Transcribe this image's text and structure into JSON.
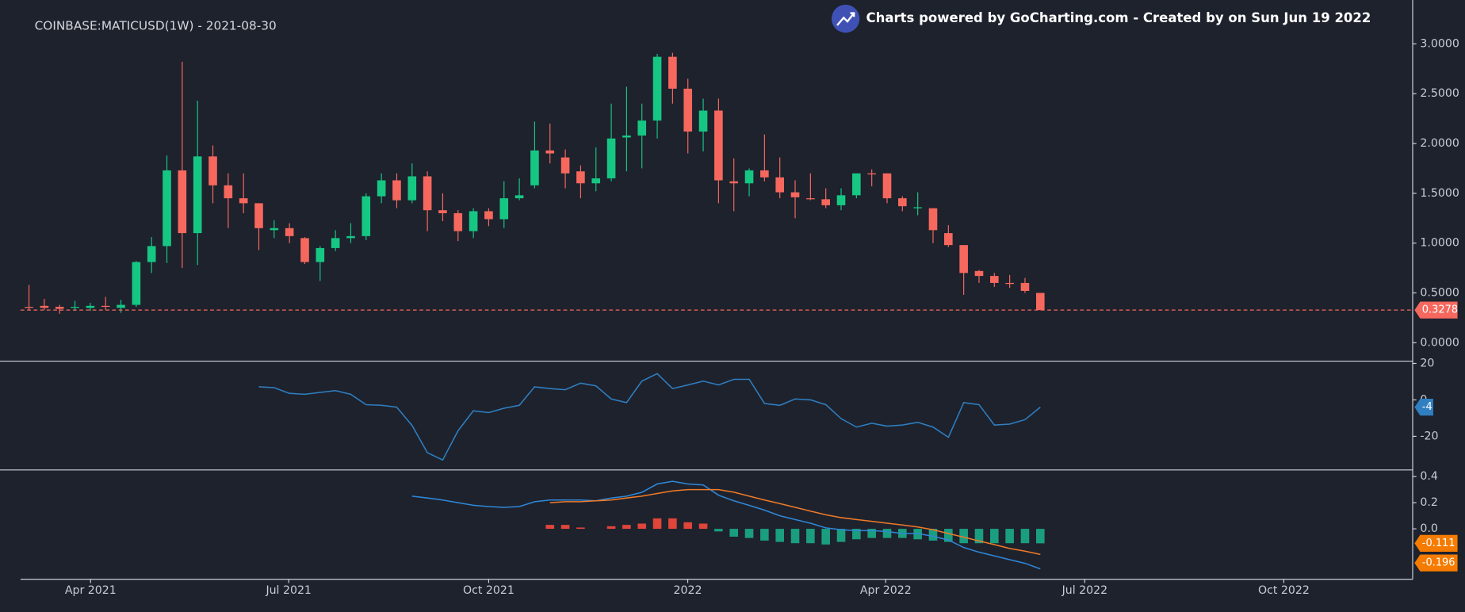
{
  "header": {
    "credit": "Charts powered by GoCharting.com - Created by  on Sun Jun 19 2022"
  },
  "chart_data": [
    {
      "type": "candlestick",
      "title": "COINBASE:MATICUSD(1W) - 2021-08-30",
      "up_color": "#16c784",
      "down_color": "#f6685e",
      "open": [
        0.36,
        0.37,
        0.36,
        0.35,
        0.35,
        0.37,
        0.35,
        0.38,
        0.81,
        0.97,
        1.73,
        1.1,
        1.87,
        1.58,
        1.45,
        1.4,
        1.13,
        1.15,
        1.05,
        0.81,
        0.95,
        1.05,
        1.07,
        1.47,
        1.63,
        1.43,
        1.67,
        1.33,
        1.3,
        1.12,
        1.32,
        1.24,
        1.45,
        1.58,
        1.93,
        1.86,
        1.72,
        1.6,
        1.65,
        2.06,
        2.08,
        2.23,
        2.87,
        2.55,
        2.12,
        2.33,
        1.62,
        1.6,
        1.73,
        1.66,
        1.51,
        1.45,
        1.44,
        1.38,
        1.48,
        1.7,
        1.7,
        1.45,
        1.35,
        1.35,
        1.1,
        0.98,
        0.72,
        0.67,
        0.6,
        0.6,
        0.5
      ],
      "high": [
        0.58,
        0.44,
        0.38,
        0.42,
        0.4,
        0.46,
        0.43,
        0.82,
        1.06,
        1.88,
        2.82,
        2.43,
        1.98,
        1.7,
        1.7,
        1.4,
        1.23,
        1.2,
        1.06,
        0.97,
        1.13,
        1.2,
        1.5,
        1.7,
        1.7,
        1.8,
        1.72,
        1.5,
        1.33,
        1.35,
        1.35,
        1.62,
        1.65,
        2.22,
        2.2,
        1.94,
        1.78,
        1.96,
        2.4,
        2.57,
        2.4,
        2.9,
        2.91,
        2.65,
        2.45,
        2.45,
        1.85,
        1.75,
        2.09,
        1.86,
        1.63,
        1.7,
        1.55,
        1.55,
        1.7,
        1.74,
        1.7,
        1.47,
        1.51,
        1.35,
        1.18,
        0.98,
        0.73,
        0.7,
        0.68,
        0.65,
        0.5
      ],
      "low": [
        0.33,
        0.33,
        0.29,
        0.32,
        0.32,
        0.33,
        0.3,
        0.36,
        0.7,
        0.8,
        0.75,
        0.78,
        1.4,
        1.15,
        1.3,
        0.93,
        1.05,
        1.0,
        0.79,
        0.62,
        0.92,
        1.0,
        1.03,
        1.4,
        1.35,
        1.4,
        1.12,
        1.22,
        1.02,
        1.05,
        1.17,
        1.15,
        1.43,
        1.55,
        1.8,
        1.55,
        1.45,
        1.52,
        1.62,
        1.72,
        1.75,
        2.05,
        2.4,
        1.9,
        1.92,
        1.4,
        1.32,
        1.47,
        1.62,
        1.45,
        1.25,
        1.43,
        1.35,
        1.33,
        1.45,
        1.57,
        1.4,
        1.32,
        1.28,
        1.0,
        0.96,
        0.48,
        0.6,
        0.56,
        0.55,
        0.5,
        0.3278
      ],
      "close": [
        0.35,
        0.35,
        0.34,
        0.36,
        0.37,
        0.36,
        0.38,
        0.81,
        0.97,
        1.73,
        1.1,
        1.87,
        1.58,
        1.45,
        1.4,
        1.15,
        1.15,
        1.07,
        0.81,
        0.95,
        1.05,
        1.07,
        1.47,
        1.63,
        1.43,
        1.67,
        1.33,
        1.3,
        1.12,
        1.32,
        1.24,
        1.45,
        1.48,
        1.93,
        1.9,
        1.7,
        1.6,
        1.65,
        2.05,
        2.08,
        2.23,
        2.87,
        2.55,
        2.12,
        2.33,
        1.63,
        1.6,
        1.73,
        1.66,
        1.51,
        1.46,
        1.44,
        1.38,
        1.48,
        1.7,
        1.69,
        1.45,
        1.37,
        1.36,
        1.13,
        0.98,
        0.7,
        0.67,
        0.6,
        0.59,
        0.52,
        0.3278
      ],
      "xlim": [
        -0.55,
        90.3
      ],
      "xticks": [
        {
          "value": 4.02,
          "label": "Apr 2021"
        },
        {
          "value": 16.95,
          "label": "Jul 2021"
        },
        {
          "value": 30.0,
          "label": "Oct 2021"
        },
        {
          "value": 42.99,
          "label": "2022"
        },
        {
          "value": 55.91,
          "label": "Apr 2022"
        },
        {
          "value": 68.9,
          "label": "Jul 2022"
        },
        {
          "value": 81.89,
          "label": "Oct 2022"
        }
      ],
      "ylim": [
        -0.18,
        3.44
      ],
      "yticks": [
        {
          "value": 0,
          "label": "0.0000"
        },
        {
          "value": 0.5,
          "label": "0.5000"
        },
        {
          "value": 1,
          "label": "1.0000"
        },
        {
          "value": 1.5,
          "label": "1.5000"
        },
        {
          "value": 2,
          "label": "2.0000"
        },
        {
          "value": 2.5,
          "label": "2.5000"
        },
        {
          "value": 3,
          "label": "3.0000"
        }
      ]
    },
    {
      "type": "line",
      "color": "#2f7fc1",
      "values": [
        null,
        null,
        null,
        null,
        null,
        null,
        null,
        null,
        null,
        null,
        null,
        null,
        null,
        null,
        null,
        7.2,
        6.7,
        3.6,
        3.1,
        4.1,
        5.1,
        3.1,
        -2.6,
        -3,
        -4,
        -14,
        -29,
        -33,
        -17,
        -6,
        -7,
        -4.6,
        -3,
        7.2,
        6.2,
        5.6,
        9.2,
        7.7,
        0.5,
        -1.5,
        10.3,
        14.4,
        6.2,
        8.2,
        10.3,
        8.2,
        11.3,
        11.3,
        -2,
        -3,
        0.5,
        0,
        -2.6,
        -10.3,
        -14.9,
        -12.8,
        -14.4,
        -13.8,
        -12.3,
        -14.9,
        -20.5,
        -1.5,
        -2.6,
        -13.8,
        -13.3,
        -10.8,
        -4
      ],
      "ylim": [
        -37.95,
        20.51
      ],
      "yticks": [
        -20,
        0,
        20
      ]
    },
    {
      "type": "macd",
      "macd_line": {
        "color": "#2f88d8",
        "values": [
          null,
          null,
          null,
          null,
          null,
          null,
          null,
          null,
          null,
          null,
          null,
          null,
          null,
          null,
          null,
          null,
          null,
          null,
          null,
          null,
          null,
          null,
          null,
          null,
          null,
          0.25,
          0.236,
          0.22,
          0.2,
          0.18,
          0.17,
          0.164,
          0.17,
          0.207,
          0.22,
          0.22,
          0.22,
          0.214,
          0.236,
          0.25,
          0.279,
          0.343,
          0.364,
          0.343,
          0.336,
          0.257,
          0.214,
          0.179,
          0.143,
          0.1,
          0.071,
          0.043,
          0.007,
          -0.007,
          -0.014,
          -0.014,
          -0.021,
          -0.036,
          -0.036,
          -0.057,
          -0.086,
          -0.143,
          -0.179,
          -0.207,
          -0.236,
          -0.264,
          -0.307
        ]
      },
      "signal_line": {
        "color": "#f07a28",
        "values": [
          null,
          null,
          null,
          null,
          null,
          null,
          null,
          null,
          null,
          null,
          null,
          null,
          null,
          null,
          null,
          null,
          null,
          null,
          null,
          null,
          null,
          null,
          null,
          null,
          null,
          null,
          null,
          null,
          null,
          null,
          null,
          null,
          null,
          null,
          0.2,
          0.207,
          0.207,
          0.214,
          0.22,
          0.236,
          0.25,
          0.27,
          0.29,
          0.3,
          0.3,
          0.3,
          0.28,
          0.25,
          0.22,
          0.193,
          0.164,
          0.136,
          0.107,
          0.086,
          0.071,
          0.057,
          0.043,
          0.029,
          0.014,
          -0.007,
          -0.036,
          -0.064,
          -0.093,
          -0.121,
          -0.15,
          -0.171,
          -0.196
        ]
      },
      "histogram": {
        "positive_color": "#e0453a",
        "negative_color": "#1a9e7f",
        "marker_color": "#f57c00",
        "values": [
          null,
          null,
          null,
          null,
          null,
          null,
          null,
          null,
          null,
          null,
          null,
          null,
          null,
          null,
          null,
          null,
          null,
          null,
          null,
          null,
          null,
          null,
          null,
          null,
          null,
          null,
          null,
          null,
          null,
          null,
          null,
          null,
          null,
          null,
          0.03,
          0.03,
          0.01,
          0,
          0.02,
          0.03,
          0.04,
          0.08,
          0.08,
          0.05,
          0.04,
          -0.02,
          -0.06,
          -0.07,
          -0.09,
          -0.1,
          -0.11,
          -0.11,
          -0.12,
          -0.1,
          -0.08,
          -0.07,
          -0.07,
          -0.07,
          -0.08,
          -0.09,
          -0.1,
          -0.11,
          -0.11,
          -0.11,
          -0.11,
          -0.11,
          -0.111
        ]
      },
      "ylim": [
        -0.386,
        0.443
      ],
      "yticks": [
        0.4,
        0.2,
        {
          "value": 0,
          "label": "0.0"
        }
      ]
    }
  ]
}
